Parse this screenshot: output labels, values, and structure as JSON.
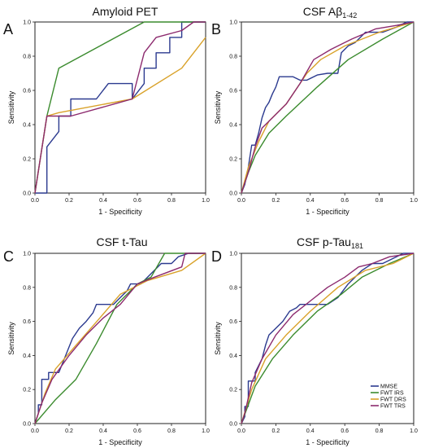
{
  "colors": {
    "MMSE": "#2b3a8f",
    "FWT IRS": "#3b8b2e",
    "FWT DRS": "#d9a22a",
    "FWT TRS": "#8c2a6e"
  },
  "legend": [
    "MMSE",
    "FWT IRS",
    "FWT DRS",
    "FWT TRS"
  ],
  "chart_data": [
    {
      "type": "line",
      "panel": "A",
      "title": "Amyloid PET",
      "title_main": "Amyloid PET",
      "title_sub": "",
      "xlabel": "1 - Specificity",
      "ylabel": "Sensitivity",
      "xlim": [
        0,
        1
      ],
      "ylim": [
        0,
        1
      ],
      "x_ticks": [
        "0.0",
        "0.2",
        "0.4",
        "0.6",
        "0.8",
        "1.0"
      ],
      "y_ticks": [
        "0.0",
        "0.2",
        "0.4",
        "0.6",
        "0.8",
        "1.0"
      ],
      "series": [
        {
          "name": "MMSE",
          "x": [
            0,
            0.07,
            0.07,
            0.14,
            0.14,
            0.21,
            0.21,
            0.36,
            0.43,
            0.43,
            0.57,
            0.57,
            0.64,
            0.64,
            0.71,
            0.71,
            0.79,
            0.79,
            0.86,
            0.86,
            1.0
          ],
          "y": [
            0,
            0,
            0.27,
            0.36,
            0.45,
            0.45,
            0.55,
            0.55,
            0.64,
            0.64,
            0.64,
            0.55,
            0.64,
            0.73,
            0.73,
            0.82,
            0.82,
            0.91,
            0.91,
            1.0,
            1.0
          ]
        },
        {
          "name": "FWT IRS",
          "x": [
            0,
            0.07,
            0.14,
            0.64,
            1.0
          ],
          "y": [
            0,
            0.45,
            0.73,
            1.0,
            1.0
          ]
        },
        {
          "name": "FWT DRS",
          "x": [
            0,
            0.07,
            0.14,
            0.57,
            0.86,
            1.0
          ],
          "y": [
            0,
            0.45,
            0.47,
            0.55,
            0.73,
            0.91
          ]
        },
        {
          "name": "FWT TRS",
          "x": [
            0,
            0.07,
            0.14,
            0.21,
            0.57,
            0.64,
            0.71,
            0.86,
            0.93,
            1.0
          ],
          "y": [
            0,
            0.45,
            0.45,
            0.45,
            0.55,
            0.82,
            0.91,
            0.95,
            1.0,
            1.0
          ]
        }
      ]
    },
    {
      "type": "line",
      "panel": "B",
      "title": "CSF Aβ1-42",
      "title_main": "CSF Aβ",
      "title_sub": "1-42",
      "xlabel": "1 - Specificity",
      "ylabel": "Sensitivity",
      "xlim": [
        0,
        1
      ],
      "ylim": [
        0,
        1
      ],
      "x_ticks": [
        "0.0",
        "0.2",
        "0.4",
        "0.6",
        "0.8",
        "1.0"
      ],
      "y_ticks": [
        "0.0",
        "0.2",
        "0.4",
        "0.6",
        "0.8",
        "1.0"
      ],
      "series": [
        {
          "name": "MMSE",
          "x": [
            0,
            0.02,
            0.04,
            0.06,
            0.08,
            0.1,
            0.12,
            0.14,
            0.16,
            0.18,
            0.2,
            0.22,
            0.3,
            0.34,
            0.38,
            0.44,
            0.5,
            0.56,
            0.58,
            0.62,
            0.66,
            0.72,
            0.82,
            0.9,
            0.96,
            1.0
          ],
          "y": [
            0,
            0.05,
            0.15,
            0.28,
            0.28,
            0.35,
            0.44,
            0.5,
            0.53,
            0.58,
            0.62,
            0.68,
            0.68,
            0.66,
            0.66,
            0.69,
            0.7,
            0.7,
            0.82,
            0.86,
            0.88,
            0.94,
            0.94,
            0.97,
            1.0,
            1.0
          ]
        },
        {
          "name": "FWT IRS",
          "x": [
            0,
            0.04,
            0.08,
            0.16,
            0.26,
            0.44,
            0.62,
            0.82,
            1.0
          ],
          "y": [
            0,
            0.12,
            0.22,
            0.35,
            0.45,
            0.62,
            0.78,
            0.9,
            1.0
          ]
        },
        {
          "name": "FWT DRS",
          "x": [
            0,
            0.04,
            0.1,
            0.16,
            0.26,
            0.38,
            0.46,
            0.6,
            0.8,
            1.0
          ],
          "y": [
            0,
            0.15,
            0.3,
            0.42,
            0.52,
            0.7,
            0.78,
            0.86,
            0.94,
            1.0
          ]
        },
        {
          "name": "FWT TRS",
          "x": [
            0,
            0.04,
            0.08,
            0.12,
            0.18,
            0.26,
            0.34,
            0.42,
            0.52,
            0.64,
            0.78,
            0.9,
            1.0
          ],
          "y": [
            0,
            0.12,
            0.27,
            0.38,
            0.44,
            0.52,
            0.64,
            0.78,
            0.84,
            0.9,
            0.96,
            0.98,
            1.0
          ]
        }
      ]
    },
    {
      "type": "line",
      "panel": "C",
      "title": "CSF t-Tau",
      "title_main": "CSF t-Tau",
      "title_sub": "",
      "xlabel": "1 - Specificity",
      "ylabel": "Sensitivity",
      "xlim": [
        0,
        1
      ],
      "ylim": [
        0,
        1
      ],
      "x_ticks": [
        "0.0",
        "0.2",
        "0.4",
        "0.6",
        "0.8",
        "1.0"
      ],
      "y_ticks": [
        "0.0",
        "0.2",
        "0.4",
        "0.6",
        "0.8",
        "1.0"
      ],
      "series": [
        {
          "name": "MMSE",
          "x": [
            0,
            0.02,
            0.02,
            0.04,
            0.04,
            0.08,
            0.08,
            0.14,
            0.16,
            0.2,
            0.22,
            0.26,
            0.3,
            0.34,
            0.36,
            0.4,
            0.46,
            0.5,
            0.54,
            0.56,
            0.62,
            0.66,
            0.7,
            0.74,
            0.8,
            0.84,
            0.9,
            1.0
          ],
          "y": [
            0,
            0.06,
            0.11,
            0.11,
            0.26,
            0.26,
            0.3,
            0.3,
            0.35,
            0.45,
            0.5,
            0.56,
            0.6,
            0.65,
            0.7,
            0.7,
            0.7,
            0.74,
            0.78,
            0.82,
            0.82,
            0.86,
            0.9,
            0.94,
            0.94,
            0.98,
            1.0,
            1.0
          ]
        },
        {
          "name": "FWT IRS",
          "x": [
            0,
            0.12,
            0.24,
            0.36,
            0.48,
            0.6,
            0.68,
            0.76,
            1.0
          ],
          "y": [
            0,
            0.14,
            0.26,
            0.47,
            0.7,
            0.82,
            0.86,
            1.0,
            1.0
          ]
        },
        {
          "name": "FWT DRS",
          "x": [
            0,
            0.06,
            0.12,
            0.24,
            0.38,
            0.5,
            0.66,
            0.86,
            1.0
          ],
          "y": [
            0,
            0.18,
            0.32,
            0.46,
            0.62,
            0.76,
            0.84,
            0.9,
            1.0
          ]
        },
        {
          "name": "FWT TRS",
          "x": [
            0,
            0.04,
            0.1,
            0.2,
            0.3,
            0.4,
            0.5,
            0.6,
            0.7,
            0.86,
            0.88,
            1.0
          ],
          "y": [
            0,
            0.12,
            0.26,
            0.4,
            0.52,
            0.62,
            0.7,
            0.82,
            0.86,
            0.92,
            1.0,
            1.0
          ]
        }
      ]
    },
    {
      "type": "line",
      "panel": "D",
      "title": "CSF p-Tau181",
      "title_main": "CSF p-Tau",
      "title_sub": "181",
      "xlabel": "1 - Specificity",
      "ylabel": "Sensitivity",
      "xlim": [
        0,
        1
      ],
      "ylim": [
        0,
        1
      ],
      "x_ticks": [
        "0.0",
        "0.2",
        "0.4",
        "0.6",
        "0.8",
        "1.0"
      ],
      "y_ticks": [
        "0.0",
        "0.2",
        "0.4",
        "0.6",
        "0.8",
        "1.0"
      ],
      "series": [
        {
          "name": "MMSE",
          "x": [
            0,
            0.02,
            0.02,
            0.04,
            0.04,
            0.08,
            0.08,
            0.12,
            0.14,
            0.16,
            0.2,
            0.24,
            0.28,
            0.32,
            0.34,
            0.38,
            0.44,
            0.5,
            0.56,
            0.62,
            0.66,
            0.7,
            0.76,
            0.82,
            0.9,
            0.94,
            1.0
          ],
          "y": [
            0,
            0.04,
            0.1,
            0.1,
            0.25,
            0.25,
            0.3,
            0.38,
            0.46,
            0.52,
            0.56,
            0.6,
            0.66,
            0.68,
            0.7,
            0.7,
            0.7,
            0.7,
            0.74,
            0.82,
            0.86,
            0.9,
            0.94,
            0.94,
            0.98,
            1.0,
            1.0
          ]
        },
        {
          "name": "FWT IRS",
          "x": [
            0,
            0.08,
            0.18,
            0.3,
            0.44,
            0.58,
            0.7,
            0.86,
            1.0
          ],
          "y": [
            0,
            0.22,
            0.38,
            0.52,
            0.66,
            0.76,
            0.86,
            0.94,
            1.0
          ]
        },
        {
          "name": "FWT DRS",
          "x": [
            0,
            0.06,
            0.14,
            0.26,
            0.4,
            0.56,
            0.72,
            0.88,
            1.0
          ],
          "y": [
            0,
            0.2,
            0.38,
            0.52,
            0.66,
            0.8,
            0.9,
            0.94,
            1.0
          ]
        },
        {
          "name": "FWT TRS",
          "x": [
            0,
            0.02,
            0.06,
            0.12,
            0.2,
            0.3,
            0.4,
            0.5,
            0.6,
            0.68,
            0.76,
            0.86,
            1.0
          ],
          "y": [
            0,
            0.06,
            0.24,
            0.38,
            0.52,
            0.64,
            0.72,
            0.8,
            0.86,
            0.92,
            0.94,
            0.98,
            1.0
          ]
        }
      ]
    }
  ]
}
